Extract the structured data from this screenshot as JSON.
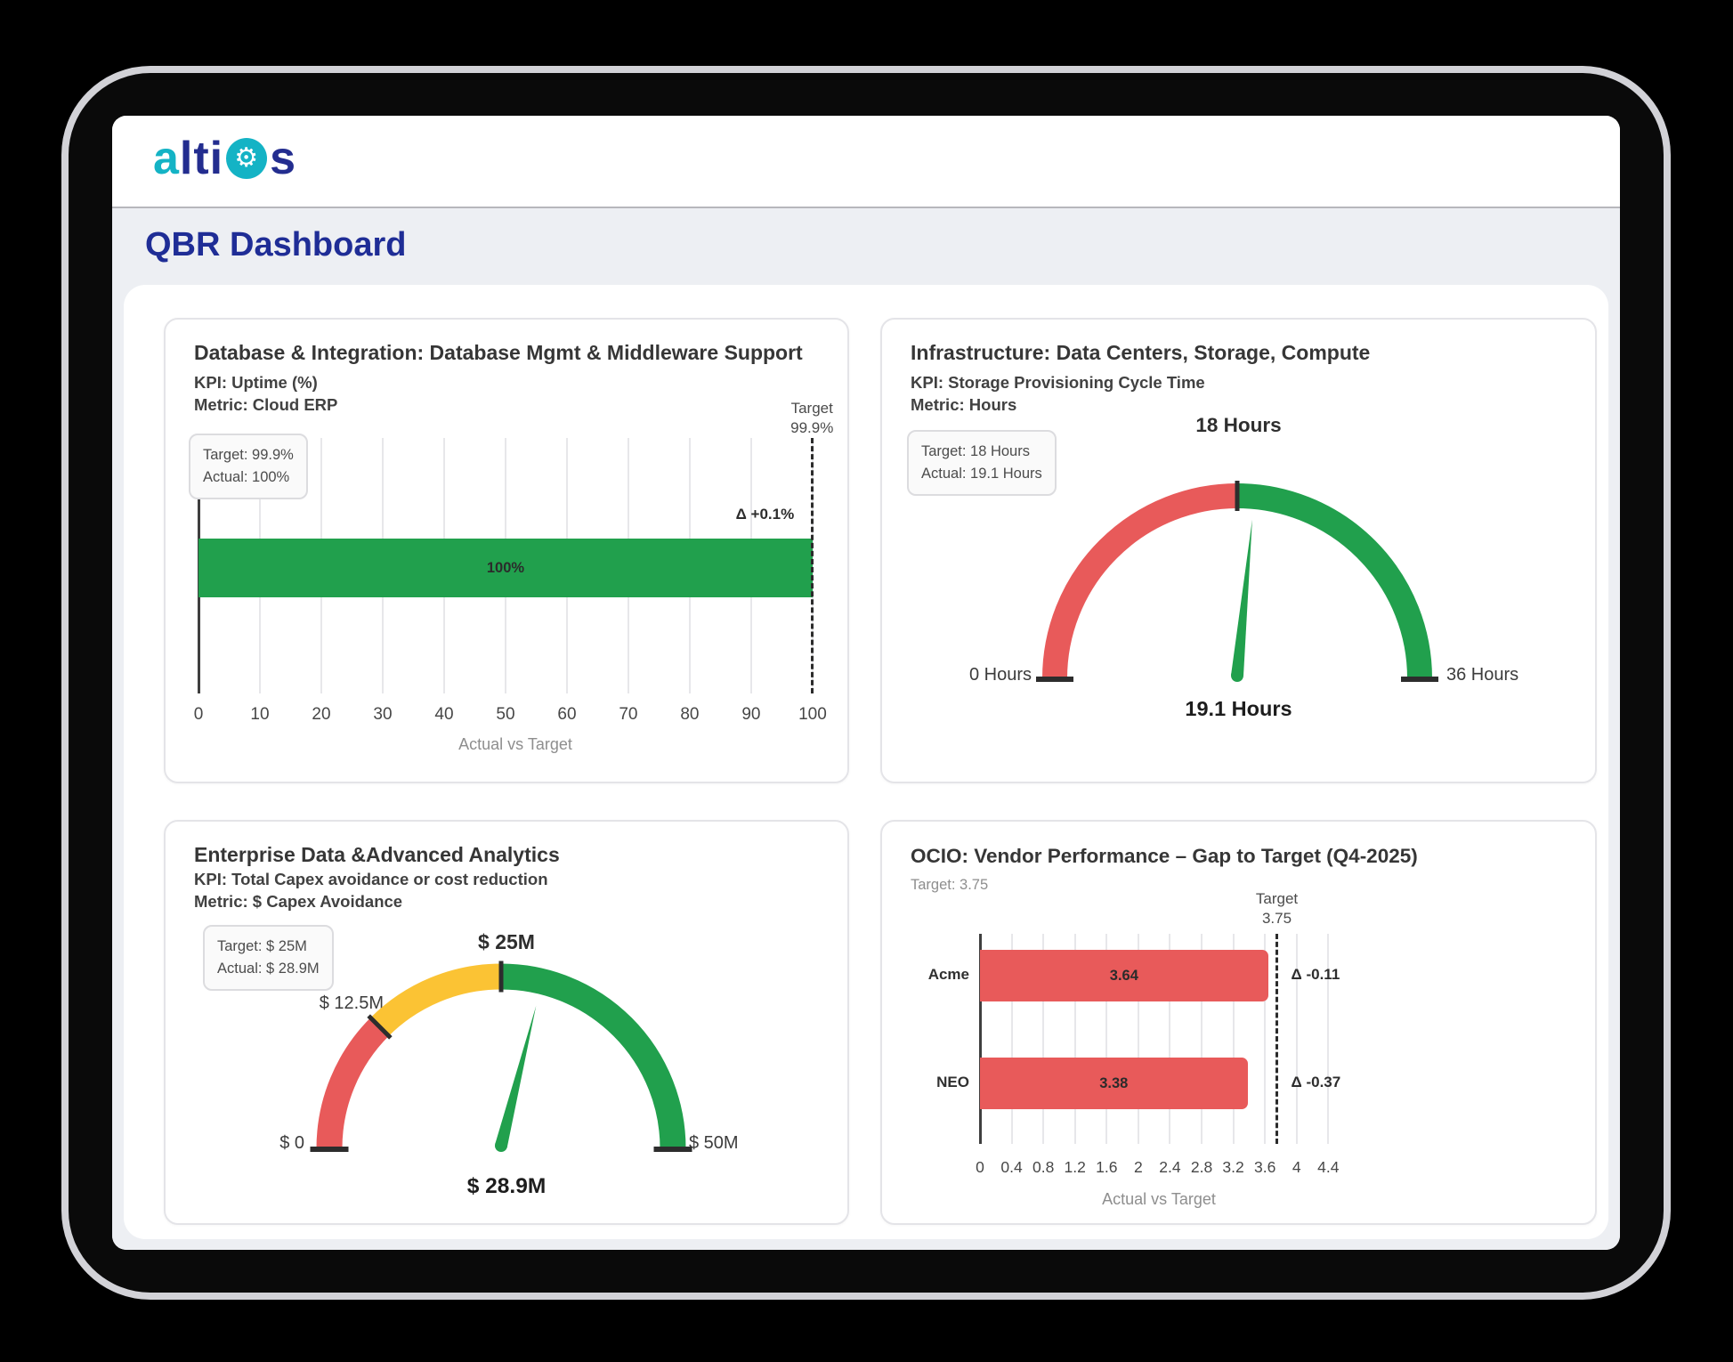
{
  "header": {
    "logo": {
      "a": "a",
      "lti": "lti",
      "gear_icon": "⚙",
      "s": "s"
    }
  },
  "page": {
    "title": "QBR Dashboard"
  },
  "colors": {
    "green": "#21A04D",
    "red": "#E85A5A",
    "yellow": "#FBC334",
    "navy": "#1F2D96",
    "teal": "#14B3C5"
  },
  "panels": [
    {
      "title": "Database & Integration: Database Mgmt & Middleware Support",
      "kpi": "KPI: Uptime (%)",
      "metric": "Metric: Cloud ERP",
      "info": {
        "line1": "Target: 99.9%",
        "line2": "Actual: 100%"
      }
    },
    {
      "title": "Infrastructure: Data Centers, Storage, Compute",
      "kpi": "KPI: Storage Provisioning Cycle Time",
      "metric": "Metric: Hours",
      "info": {
        "line1": "Target: 18 Hours",
        "line2": "Actual: 19.1 Hours"
      }
    },
    {
      "title": "Enterprise Data &Advanced Analytics",
      "kpi": "KPI: Total Capex avoidance or cost reduction",
      "metric": "Metric: $ Capex Avoidance",
      "info": {
        "line1": "Target: $ 25M",
        "line2": "Actual: $ 28.9M"
      }
    },
    {
      "title": "OCIO: Vendor Performance – Gap to Target (Q4-2025)",
      "subtitle": "Target: 3.75"
    }
  ],
  "chart_data": [
    {
      "type": "bar",
      "orientation": "horizontal",
      "title": "Database & Integration: Database Mgmt & Middleware Support",
      "series": [
        {
          "name": "Cloud ERP",
          "value": 100,
          "label": "100%"
        }
      ],
      "target": 99.9,
      "target_line_label": [
        "Target",
        "99.9%"
      ],
      "delta_label": "Δ +0.1%",
      "ticks": [
        0,
        10,
        20,
        30,
        40,
        50,
        60,
        70,
        80,
        90,
        100
      ],
      "xlim": [
        0,
        103.2
      ],
      "xlabel": "Actual vs Target",
      "bar_color": "#21A04D",
      "grid": true,
      "target_line_style": "dashed"
    },
    {
      "type": "gauge",
      "title": "Infrastructure: Data Centers, Storage, Compute",
      "min": 0,
      "max": 36,
      "value": 19.1,
      "target": 18,
      "top_label": "18 Hours",
      "min_label": "0 Hours",
      "max_label": "36 Hours",
      "value_label": "19.1 Hours",
      "segments": [
        {
          "from": 0,
          "to": 18,
          "color": "#E85A5A"
        },
        {
          "from": 18,
          "to": 36,
          "color": "#21A04D"
        }
      ],
      "needle_color": "#21A04D"
    },
    {
      "type": "gauge",
      "title": "Enterprise Data &Advanced Analytics",
      "min": 0,
      "max": 50,
      "value": 28.9,
      "target": 25,
      "top_label": "$ 25M",
      "mid_label": "$ 12.5M",
      "min_label": "$ 0",
      "max_label": "$ 50M",
      "value_label": "$ 28.9M",
      "segments": [
        {
          "from": 0,
          "to": 12.5,
          "color": "#E85A5A"
        },
        {
          "from": 12.5,
          "to": 25,
          "color": "#FBC334"
        },
        {
          "from": 25,
          "to": 50,
          "color": "#21A04D"
        }
      ],
      "needle_color": "#21A04D"
    },
    {
      "type": "bar",
      "orientation": "horizontal",
      "title": "OCIO: Vendor Performance – Gap to Target (Q4-2025)",
      "series": [
        {
          "category": "Acme",
          "value": 3.64,
          "label": "3.64",
          "delta": "Δ -0.11"
        },
        {
          "category": "NEO",
          "value": 3.38,
          "label": "3.38",
          "delta": "Δ -0.37"
        }
      ],
      "target": 3.75,
      "target_line_label": [
        "Target",
        "3.75"
      ],
      "ticks": [
        0,
        0.4,
        0.8,
        1.2,
        1.6,
        2,
        2.4,
        2.8,
        3.2,
        3.6,
        4,
        4.4
      ],
      "tick_labels": [
        "0",
        "0.4",
        "0.8",
        "1.2",
        "1.6",
        "2",
        "2.4",
        "2.8",
        "3.2",
        "3.6",
        "4",
        "4.4"
      ],
      "xlim": [
        0,
        4.52
      ],
      "xlabel": "Actual vs Target",
      "bar_color": "#E85A5A",
      "grid": true,
      "target_line_style": "dashed"
    }
  ]
}
